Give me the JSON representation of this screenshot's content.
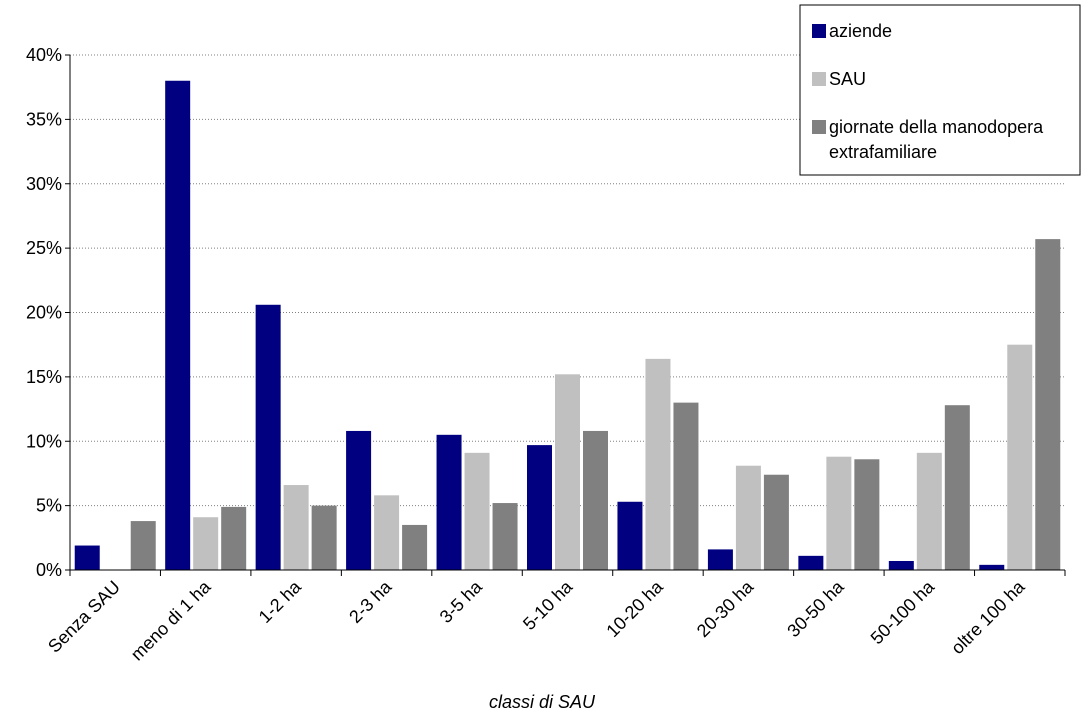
{
  "chart_data": {
    "type": "bar",
    "title": "",
    "xlabel": "classi di SAU",
    "ylabel": "",
    "ylim": [
      0,
      40
    ],
    "yticks": [
      "0%",
      "5%",
      "10%",
      "15%",
      "20%",
      "25%",
      "30%",
      "35%",
      "40%"
    ],
    "grid": "horizontal-dotted",
    "legend_position": "top-right",
    "categories": [
      "Senza SAU",
      "meno di 1 ha",
      "1-2 ha",
      "2-3 ha",
      "3-5 ha",
      "5-10 ha",
      "10-20 ha",
      "20-30 ha",
      "30-50 ha",
      "50-100 ha",
      "oltre 100 ha"
    ],
    "series": [
      {
        "name": "aziende",
        "color": "#000080",
        "values": [
          1.9,
          38.0,
          20.6,
          10.8,
          10.5,
          9.7,
          5.3,
          1.6,
          1.1,
          0.7,
          0.4
        ]
      },
      {
        "name": "SAU",
        "color": "#c0c0c0",
        "values": [
          0.0,
          4.1,
          6.6,
          5.8,
          9.1,
          15.2,
          16.4,
          8.1,
          8.8,
          9.1,
          17.5
        ]
      },
      {
        "name": "giornate della manodopera extrafamiliare",
        "name_lines": [
          "giornate della manodopera",
          "extrafamiliare"
        ],
        "color": "#808080",
        "values": [
          3.8,
          4.9,
          5.0,
          3.5,
          5.2,
          10.8,
          13.0,
          7.4,
          8.6,
          12.8,
          25.7
        ]
      }
    ]
  }
}
